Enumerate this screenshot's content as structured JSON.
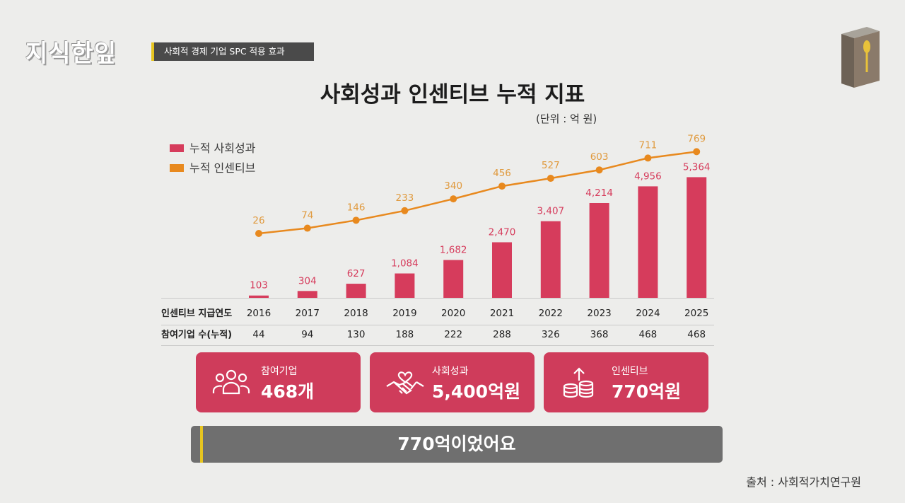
{
  "header": {
    "logo_text": "지식한잎",
    "segment_title": "사회적 경제 기업 SPC 적용 효과"
  },
  "title": "사회성과 인센티브 누적 지표",
  "unit_label": "(단위 : 억 원)",
  "colors": {
    "bar": "#d63c5c",
    "line": "#e8891e",
    "line_label": "#e09a3e",
    "card": "#cf3c5b",
    "caption_bar": "#6f6f6f",
    "caption_accent": "#e7c51f"
  },
  "chart_data": {
    "type": "bar",
    "categories": [
      "2016",
      "2017",
      "2018",
      "2019",
      "2020",
      "2021",
      "2022",
      "2023",
      "2024",
      "2025"
    ],
    "series": [
      {
        "name": "누적 사회성과",
        "type": "bar",
        "values": [
          103,
          304,
          627,
          1084,
          1682,
          2470,
          3407,
          4214,
          4956,
          5364
        ],
        "labels": [
          "103",
          "304",
          "627",
          "1,084",
          "1,682",
          "2,470",
          "3,407",
          "4,214",
          "4,956",
          "5,364"
        ]
      },
      {
        "name": "누적 인센티브",
        "type": "line",
        "values": [
          26,
          74,
          146,
          233,
          340,
          456,
          527,
          603,
          711,
          769
        ],
        "labels": [
          "26",
          "74",
          "146",
          "233",
          "340",
          "456",
          "527",
          "603",
          "711",
          "769"
        ]
      }
    ],
    "legend_position": "top-left",
    "grid": false,
    "table_rows": [
      {
        "label": "인센티브 지급연도",
        "values": [
          "2016",
          "2017",
          "2018",
          "2019",
          "2020",
          "2021",
          "2022",
          "2023",
          "2024",
          "2025"
        ]
      },
      {
        "label": "참여기업 수(누적)",
        "values": [
          "44",
          "94",
          "130",
          "188",
          "222",
          "288",
          "326",
          "368",
          "468",
          "468"
        ]
      }
    ]
  },
  "cards": [
    {
      "icon": "people-icon",
      "label": "참여기업",
      "value": "468개"
    },
    {
      "icon": "handshake-heart-icon",
      "label": "사회성과",
      "value": "5,400억원"
    },
    {
      "icon": "coins-arrow-icon",
      "label": "인센티브",
      "value": "770억원"
    }
  ],
  "caption": "770억이었어요",
  "source": "출처 : 사회적가치연구원"
}
